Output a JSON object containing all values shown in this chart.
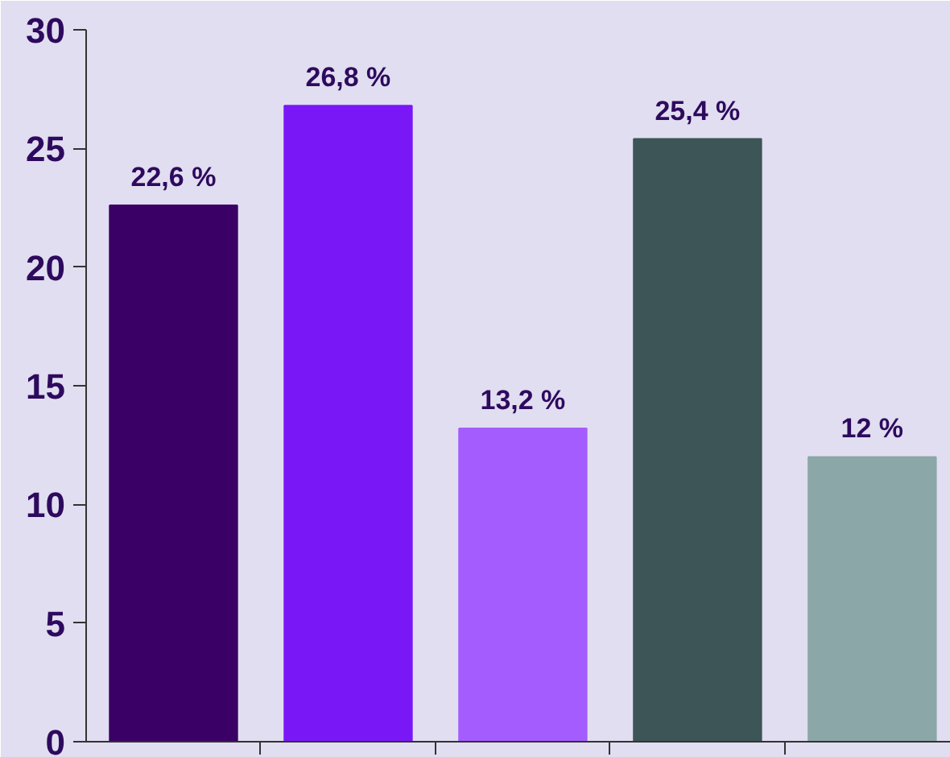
{
  "chart_data": {
    "type": "bar",
    "categories": [
      null,
      null,
      null,
      null,
      null
    ],
    "values": [
      22.6,
      26.8,
      13.2,
      25.4,
      12
    ],
    "colors": [
      "#3a0066",
      "#7a17f7",
      "#a55cff",
      "#3d5557",
      "#8ba7a8"
    ],
    "value_labels": [
      "22,6 %",
      "26,8 %",
      "13,2 %",
      "25,4 %",
      "12 %"
    ],
    "ylim": [
      0,
      30
    ],
    "yticks": [
      0,
      5,
      10,
      15,
      20,
      25,
      30
    ],
    "grid": false
  }
}
